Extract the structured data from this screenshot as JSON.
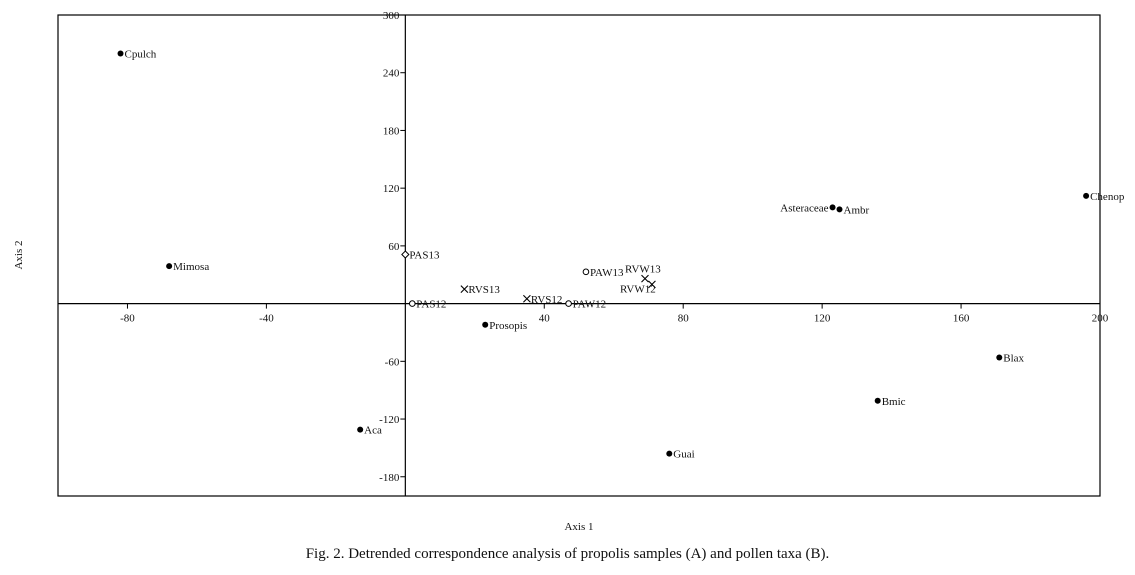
{
  "caption": "Fig. 2. Detrended correspondence analysis of propolis samples (A) and pollen taxa (B).",
  "chart_data": {
    "type": "scatter",
    "xlabel": "Axis 1",
    "ylabel": "Axis 2",
    "xlim": [
      -100,
      200
    ],
    "ylim": [
      -200,
      300
    ],
    "xticks": [
      -80,
      -40,
      40,
      80,
      120,
      160,
      200
    ],
    "yticks": [
      300,
      240,
      180,
      120,
      60,
      -60,
      -120,
      -180
    ],
    "grid": false,
    "series": [
      {
        "marker": "filled-circle",
        "points": [
          {
            "label": "Cpulch",
            "x": -82,
            "y": 260
          },
          {
            "label": "Mimosa",
            "x": -68,
            "y": 39
          },
          {
            "label": "Prosopis",
            "x": 23,
            "y": -22
          },
          {
            "label": "Aca",
            "x": -13,
            "y": -131
          },
          {
            "label": "Guai",
            "x": 76,
            "y": -156
          },
          {
            "label": "Asteraceae",
            "x": 123,
            "y": 100
          },
          {
            "label": "Ambr",
            "x": 125,
            "y": 98
          },
          {
            "label": "Chenop",
            "x": 196,
            "y": 112
          },
          {
            "label": "Blax",
            "x": 171,
            "y": -56
          },
          {
            "label": "Bmic",
            "x": 136,
            "y": -101
          }
        ]
      },
      {
        "marker": "open-circle",
        "points": [
          {
            "label": "PAS12",
            "x": 2,
            "y": 0
          },
          {
            "label": "PAW13",
            "x": 52,
            "y": 33
          },
          {
            "label": "PAW12",
            "x": 47,
            "y": 0
          }
        ]
      },
      {
        "marker": "open-diamond",
        "points": [
          {
            "label": "PAS13",
            "x": 0,
            "y": 51
          }
        ]
      },
      {
        "marker": "cross",
        "points": [
          {
            "label": "RVS13",
            "x": 17,
            "y": 15
          },
          {
            "label": "RVS12",
            "x": 35,
            "y": 5
          },
          {
            "label": "RVW13",
            "x": 69,
            "y": 26
          },
          {
            "label": "RVW12",
            "x": 71,
            "y": 20
          }
        ]
      }
    ]
  }
}
